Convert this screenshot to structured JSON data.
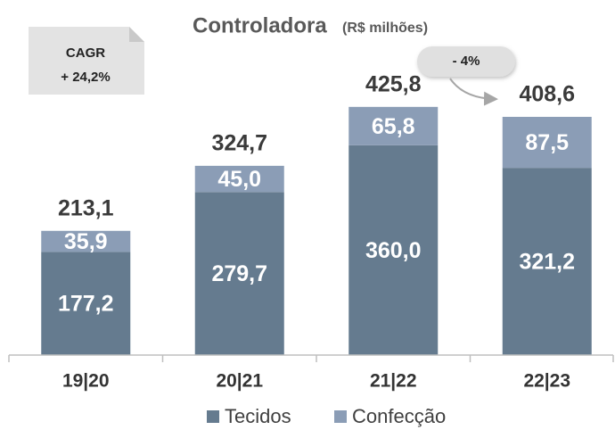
{
  "chart_data": {
    "type": "bar",
    "stacked": true,
    "title": "Controladora",
    "subtitle": "(R$ milhões)",
    "categories": [
      "19|20",
      "20|21",
      "21|22",
      "22|23"
    ],
    "series": [
      {
        "name": "Tecidos",
        "color": "#657b8f",
        "values": [
          177.2,
          279.7,
          360.0,
          321.2
        ],
        "value_labels": [
          "177,2",
          "279,7",
          "360,0",
          "321,2"
        ]
      },
      {
        "name": "Confecção",
        "color": "#8b9db6",
        "values": [
          35.9,
          45.0,
          65.8,
          87.5
        ],
        "value_labels": [
          "35,9",
          "45,0",
          "65,8",
          "87,5"
        ]
      }
    ],
    "totals": [
      213.1,
      324.7,
      425.8,
      408.6
    ],
    "total_labels": [
      "213,1",
      "324,7",
      "425,8",
      "408,6"
    ],
    "ylim": [
      0,
      450
    ],
    "cagr": {
      "title": "CAGR",
      "value": "+ 24,2%"
    },
    "change": "- 4%"
  }
}
